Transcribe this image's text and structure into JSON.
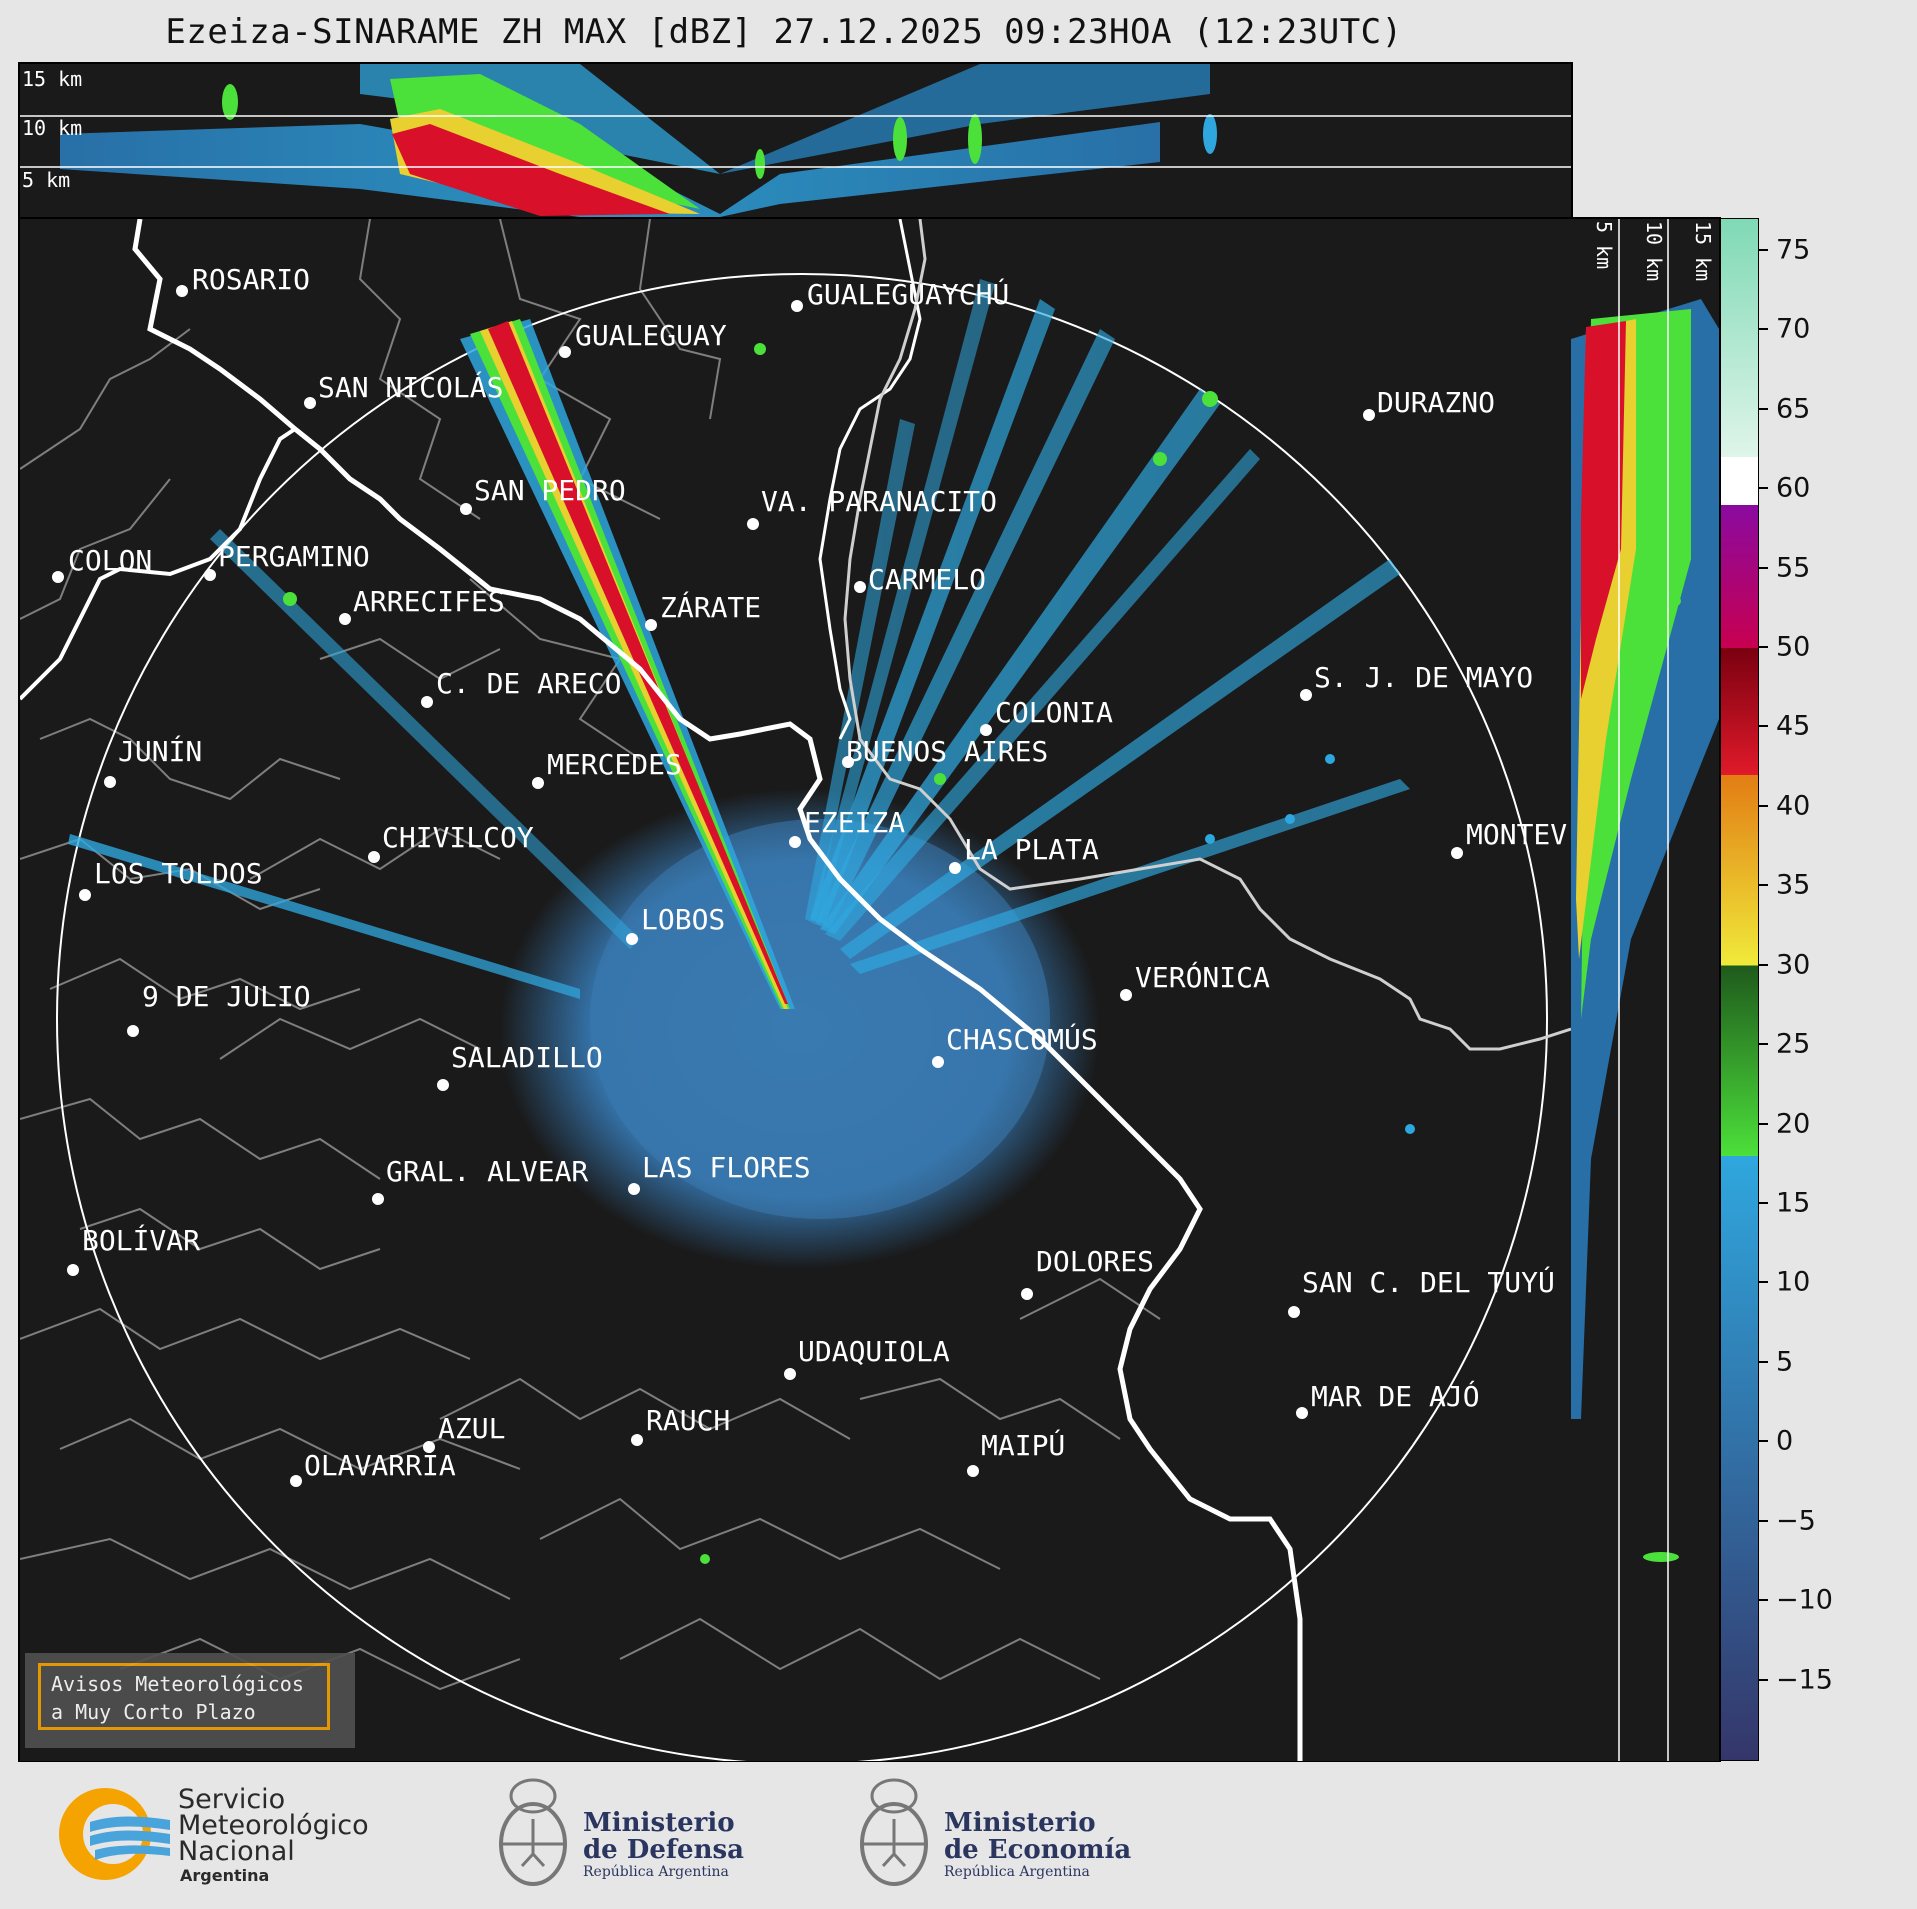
{
  "title": "Ezeiza-SINARAME ZH MAX [dBZ] 27.12.2025 09:23HOA (12:23UTC)",
  "top_panel": {
    "height_labels": [
      "15 km",
      "10 km",
      "5 km"
    ]
  },
  "side_panel": {
    "height_labels": [
      "5 km",
      "10 km",
      "15 km"
    ]
  },
  "cities": [
    {
      "name": "ROSARIO"
    },
    {
      "name": "GUALEGUAYCHÚ"
    },
    {
      "name": "GUALEGUAY"
    },
    {
      "name": "SAN NICOLÁS"
    },
    {
      "name": "DURAZNO"
    },
    {
      "name": "SAN PEDRO"
    },
    {
      "name": "VA. PARANACITO"
    },
    {
      "name": "COLON"
    },
    {
      "name": "PERGAMINO"
    },
    {
      "name": "CARMELO"
    },
    {
      "name": "ARRECIFES"
    },
    {
      "name": "ZÁRATE"
    },
    {
      "name": "S. J. DE MAYO"
    },
    {
      "name": "C. DE ARECO"
    },
    {
      "name": "COLONIA"
    },
    {
      "name": "JUNÍN"
    },
    {
      "name": "MERCEDES"
    },
    {
      "name": "BUENOS AIRES"
    },
    {
      "name": "EZEIZA"
    },
    {
      "name": "MONTEV"
    },
    {
      "name": "CHIVILCOY"
    },
    {
      "name": "LA PLATA"
    },
    {
      "name": "LOS TOLDOS"
    },
    {
      "name": "LOBOS"
    },
    {
      "name": "VERÓNICA"
    },
    {
      "name": "9 DE JULIO"
    },
    {
      "name": "CHASCOMÚS"
    },
    {
      "name": "SALADILLO"
    },
    {
      "name": "GRAL. ALVEAR"
    },
    {
      "name": "LAS FLORES"
    },
    {
      "name": "BOLÍVAR"
    },
    {
      "name": "DOLORES"
    },
    {
      "name": "SAN C. DEL TUYÚ"
    },
    {
      "name": "UDAQUIOLA"
    },
    {
      "name": "MAR DE AJÓ"
    },
    {
      "name": "AZUL"
    },
    {
      "name": "RAUCH"
    },
    {
      "name": "MAIPÚ"
    },
    {
      "name": "OLAVARRÍA"
    }
  ],
  "colorbar": {
    "unit": "dBZ",
    "min": -20,
    "max": 77,
    "ticks": [
      "75",
      "70",
      "65",
      "60",
      "55",
      "50",
      "45",
      "40",
      "35",
      "30",
      "25",
      "20",
      "15",
      "10",
      "5",
      "0",
      "−5",
      "−10",
      "−15"
    ],
    "tick_values": [
      75,
      70,
      65,
      60,
      55,
      50,
      45,
      40,
      35,
      30,
      25,
      20,
      15,
      10,
      5,
      0,
      -5,
      -10,
      -15
    ],
    "stops": [
      {
        "from": -20,
        "to": 18,
        "color_low": "#34366a",
        "color_high": "#2fa7de"
      },
      {
        "from": 18,
        "to": 30,
        "color_low": "#4ce03a",
        "color_high": "#1f5a1c"
      },
      {
        "from": 30,
        "to": 42,
        "color_low": "#f0ea3a",
        "color_high": "#e27d14"
      },
      {
        "from": 42,
        "to": 50,
        "color_low": "#e01a2a",
        "color_high": "#7a0010"
      },
      {
        "from": 50,
        "to": 59,
        "color_low": "#c80050",
        "color_high": "#8a0aa0"
      },
      {
        "from": 59,
        "to": 62,
        "color_low": "#ffffff",
        "color_high": "#ffffff"
      },
      {
        "from": 62,
        "to": 77,
        "color_low": "#dff5ea",
        "color_high": "#7fd9b5"
      }
    ]
  },
  "overlay": {
    "line1": "Avisos Meteorológicos",
    "line2": "a Muy Corto Plazo"
  },
  "footer": {
    "smn": {
      "line1": "Servicio",
      "line2": "Meteorológico",
      "line3": "Nacional",
      "line4": "Argentina"
    },
    "defensa": {
      "line1": "Ministerio",
      "line2": "de Defensa",
      "line3": "República Argentina"
    },
    "economia": {
      "line1": "Ministerio",
      "line2": "de Economía",
      "line3": "República Argentina"
    }
  },
  "colors": {
    "background": "#1a1a1a",
    "coast": "#ffffff",
    "border": "#8a8a8a",
    "echo": "#3a7ab0",
    "accent": "#f5a300"
  }
}
